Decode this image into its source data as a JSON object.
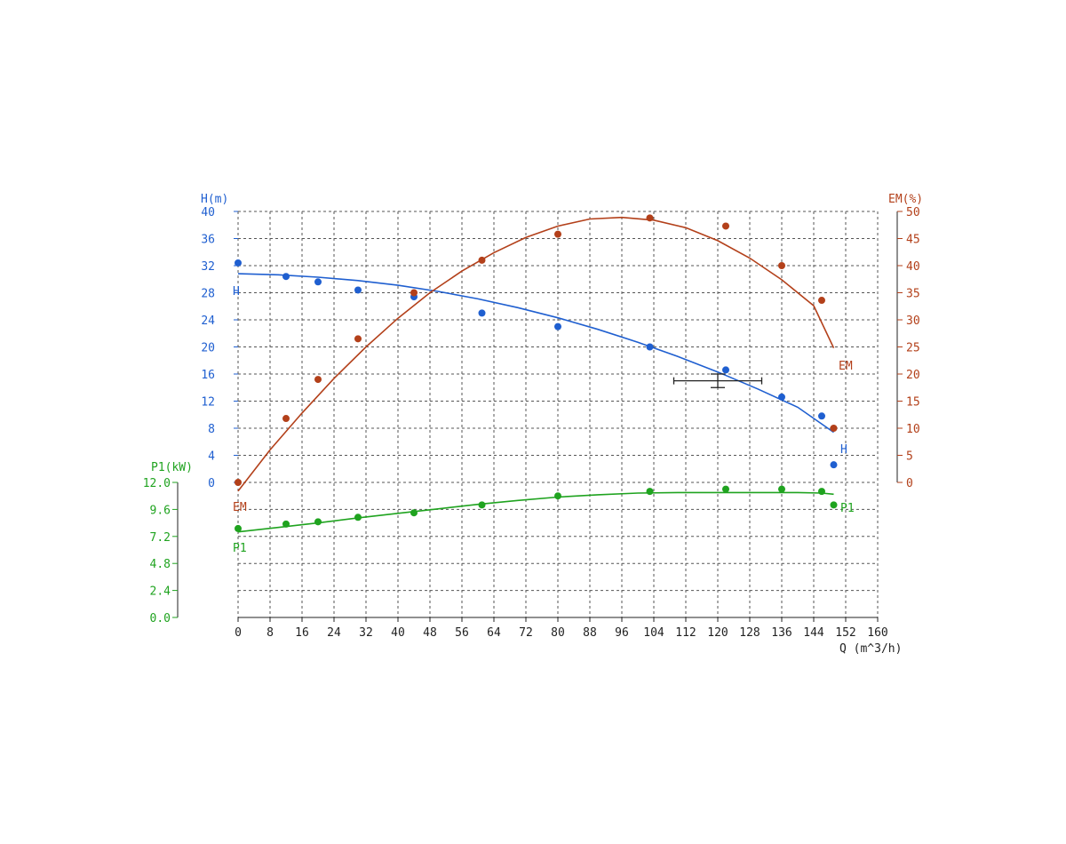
{
  "chart_data": {
    "type": "line",
    "x_axis": {
      "label": "Q (m^3/h)",
      "range": [
        0,
        160
      ],
      "ticks": [
        "0",
        "8",
        "16",
        "24",
        "32",
        "40",
        "48",
        "56",
        "64",
        "72",
        "80",
        "88",
        "96",
        "104",
        "112",
        "120",
        "128",
        "136",
        "144",
        "152",
        "160"
      ]
    },
    "y_axes": {
      "H": {
        "label": "H(m)",
        "range": [
          0,
          40
        ],
        "color": "#1f5fd0",
        "ticks": [
          "0",
          "4",
          "8",
          "12",
          "16",
          "20",
          "24",
          "28",
          "32",
          "36",
          "40"
        ]
      },
      "EM": {
        "label": "EM(%)",
        "range": [
          0,
          50
        ],
        "color": "#b3401a",
        "ticks": [
          "0",
          "5",
          "10",
          "15",
          "20",
          "25",
          "30",
          "35",
          "40",
          "45",
          "50"
        ]
      },
      "P1": {
        "label": "P1(kW)",
        "range": [
          0,
          12
        ],
        "color": "#1fa31f",
        "ticks": [
          "0.0",
          "2.4",
          "4.8",
          "7.2",
          "9.6",
          "12.0"
        ]
      }
    },
    "series": [
      {
        "name": "H",
        "axis": "H",
        "color": "#1f5fd0",
        "points": [
          [
            0,
            32.4
          ],
          [
            12,
            30.4
          ],
          [
            20,
            29.6
          ],
          [
            30,
            28.4
          ],
          [
            44,
            27.4
          ],
          [
            61,
            25.0
          ],
          [
            80,
            23.0
          ],
          [
            103,
            20.0
          ],
          [
            122,
            16.6
          ],
          [
            136,
            12.6
          ],
          [
            146,
            9.8
          ],
          [
            149,
            2.6
          ]
        ],
        "curve": [
          [
            0,
            30.8
          ],
          [
            10,
            30.65
          ],
          [
            20,
            30.3
          ],
          [
            30,
            29.8
          ],
          [
            40,
            29.1
          ],
          [
            50,
            28.2
          ],
          [
            60,
            27.1
          ],
          [
            70,
            25.8
          ],
          [
            80,
            24.3
          ],
          [
            90,
            22.6
          ],
          [
            100,
            20.7
          ],
          [
            110,
            18.6
          ],
          [
            120,
            16.3
          ],
          [
            130,
            13.8
          ],
          [
            140,
            11.1
          ],
          [
            149,
            7.4
          ]
        ],
        "label_start": "H",
        "label_end": "H"
      },
      {
        "name": "EM",
        "axis": "EM",
        "color": "#b3401a",
        "points": [
          [
            0,
            0
          ],
          [
            12,
            11.8
          ],
          [
            20,
            19.0
          ],
          [
            30,
            26.5
          ],
          [
            44,
            35.0
          ],
          [
            61,
            41.0
          ],
          [
            80,
            45.8
          ],
          [
            103,
            48.8
          ],
          [
            122,
            47.3
          ],
          [
            136,
            40.0
          ],
          [
            146,
            33.6
          ],
          [
            149,
            10.0
          ]
        ],
        "curve": [
          [
            0,
            -1.6
          ],
          [
            8,
            6.0
          ],
          [
            16,
            12.8
          ],
          [
            24,
            19.2
          ],
          [
            32,
            25.0
          ],
          [
            40,
            30.3
          ],
          [
            48,
            35.0
          ],
          [
            56,
            39.0
          ],
          [
            64,
            42.4
          ],
          [
            72,
            45.2
          ],
          [
            80,
            47.3
          ],
          [
            88,
            48.6
          ],
          [
            96,
            48.9
          ],
          [
            104,
            48.4
          ],
          [
            112,
            47.0
          ],
          [
            120,
            44.6
          ],
          [
            128,
            41.4
          ],
          [
            136,
            37.4
          ],
          [
            144,
            32.6
          ],
          [
            149,
            24.8
          ]
        ],
        "label_start": "EM",
        "label_end": "EM"
      },
      {
        "name": "P1",
        "axis": "P1",
        "color": "#1fa31f",
        "points": [
          [
            0,
            7.9
          ],
          [
            12,
            8.3
          ],
          [
            20,
            8.5
          ],
          [
            30,
            8.9
          ],
          [
            44,
            9.3
          ],
          [
            61,
            10.0
          ],
          [
            80,
            10.8
          ],
          [
            103,
            11.2
          ],
          [
            122,
            11.4
          ],
          [
            136,
            11.4
          ],
          [
            146,
            11.2
          ],
          [
            149,
            10.0
          ]
        ],
        "curve": [
          [
            0,
            7.6
          ],
          [
            10,
            8.0
          ],
          [
            20,
            8.4
          ],
          [
            30,
            8.85
          ],
          [
            40,
            9.25
          ],
          [
            50,
            9.65
          ],
          [
            60,
            10.05
          ],
          [
            70,
            10.4
          ],
          [
            80,
            10.7
          ],
          [
            90,
            10.9
          ],
          [
            100,
            11.05
          ],
          [
            110,
            11.1
          ],
          [
            120,
            11.1
          ],
          [
            130,
            11.1
          ],
          [
            140,
            11.1
          ],
          [
            146,
            11.05
          ],
          [
            149,
            10.95
          ]
        ],
        "label_start": "P1",
        "label_end": "P1"
      }
    ],
    "operating_point": {
      "q": 120,
      "h": 15.0,
      "q_range": [
        109,
        131
      ],
      "h_range": [
        14.0,
        16.0
      ]
    },
    "grid": true
  }
}
